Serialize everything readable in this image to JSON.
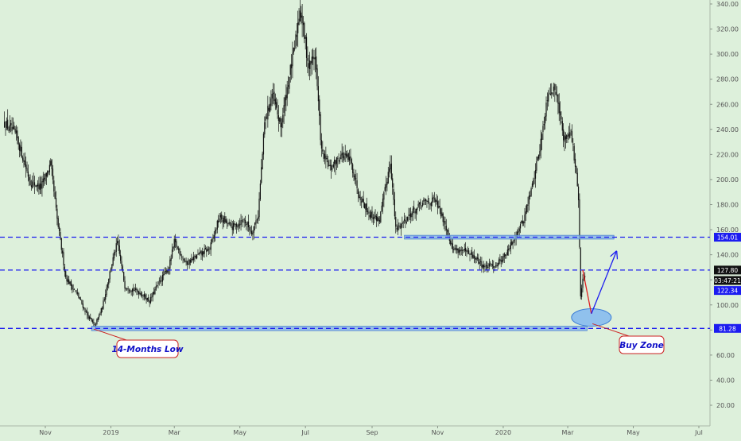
{
  "chart_data": {
    "type": "candlestick",
    "title": "",
    "xlabel": "",
    "ylabel": "",
    "ylim": [
      5,
      350
    ],
    "y_axis": {
      "position": "right",
      "ticks": [
        20,
        40,
        60,
        80,
        100,
        120,
        140,
        160,
        180,
        200,
        220,
        240,
        260,
        280,
        300,
        320,
        340
      ],
      "tick_labels": [
        "20.00",
        "40.00",
        "60.00",
        "80.00",
        "100.00",
        "120.00",
        "140.00",
        "160.00",
        "180.00",
        "200.00",
        "220.00",
        "240.00",
        "260.00",
        "280.00",
        "300.00",
        "320.00",
        "340.00"
      ]
    },
    "x_axis": {
      "ticks": [
        "2018-11-01",
        "2019-01-01",
        "2019-03-01",
        "2019-05-01",
        "2019-07-01",
        "2019-09-01",
        "2019-11-01",
        "2020-01-01",
        "2020-03-01",
        "2020-05-01",
        "2020-07-01"
      ],
      "tick_labels": [
        "Nov",
        "2019",
        "Mar",
        "May",
        "Jul",
        "Sep",
        "Nov",
        "2020",
        "Mar",
        "May",
        "Jul"
      ]
    },
    "grid": false,
    "price_path": [
      [
        "2018-09-24",
        245
      ],
      [
        "2018-10-05",
        235
      ],
      [
        "2018-10-18",
        198
      ],
      [
        "2018-10-28",
        194
      ],
      [
        "2018-11-06",
        212
      ],
      [
        "2018-11-12",
        168
      ],
      [
        "2018-11-20",
        122
      ],
      [
        "2018-12-01",
        108
      ],
      [
        "2018-12-10",
        92
      ],
      [
        "2018-12-17",
        83
      ],
      [
        "2018-12-24",
        98
      ],
      [
        "2019-01-01",
        130
      ],
      [
        "2019-01-07",
        150
      ],
      [
        "2019-01-14",
        115
      ],
      [
        "2019-01-28",
        110
      ],
      [
        "2019-02-06",
        103
      ],
      [
        "2019-02-14",
        117
      ],
      [
        "2019-02-24",
        130
      ],
      [
        "2019-03-01",
        150
      ],
      [
        "2019-03-12",
        133
      ],
      [
        "2019-03-24",
        140
      ],
      [
        "2019-04-03",
        145
      ],
      [
        "2019-04-12",
        170
      ],
      [
        "2019-04-24",
        162
      ],
      [
        "2019-05-05",
        168
      ],
      [
        "2019-05-12",
        158
      ],
      [
        "2019-05-18",
        172
      ],
      [
        "2019-05-24",
        245
      ],
      [
        "2019-05-31",
        268
      ],
      [
        "2019-06-08",
        242
      ],
      [
        "2019-06-15",
        278
      ],
      [
        "2019-06-21",
        305
      ],
      [
        "2019-06-26",
        338
      ],
      [
        "2019-07-04",
        290
      ],
      [
        "2019-07-10",
        300
      ],
      [
        "2019-07-16",
        222
      ],
      [
        "2019-07-24",
        208
      ],
      [
        "2019-08-03",
        220
      ],
      [
        "2019-08-12",
        215
      ],
      [
        "2019-08-20",
        188
      ],
      [
        "2019-08-30",
        172
      ],
      [
        "2019-09-08",
        168
      ],
      [
        "2019-09-18",
        215
      ],
      [
        "2019-09-23",
        160
      ],
      [
        "2019-10-06",
        172
      ],
      [
        "2019-10-20",
        182
      ],
      [
        "2019-10-30",
        183
      ],
      [
        "2019-11-08",
        165
      ],
      [
        "2019-11-15",
        145
      ],
      [
        "2019-11-25",
        143
      ],
      [
        "2019-12-05",
        138
      ],
      [
        "2019-12-15",
        130
      ],
      [
        "2019-12-25",
        132
      ],
      [
        "2020-01-05",
        142
      ],
      [
        "2020-01-12",
        155
      ],
      [
        "2020-01-20",
        168
      ],
      [
        "2020-01-28",
        195
      ],
      [
        "2020-02-05",
        230
      ],
      [
        "2020-02-12",
        272
      ],
      [
        "2020-02-20",
        270
      ],
      [
        "2020-02-26",
        232
      ],
      [
        "2020-03-04",
        240
      ],
      [
        "2020-03-09",
        202
      ],
      [
        "2020-03-11",
        185
      ],
      [
        "2020-03-12",
        145
      ],
      [
        "2020-03-13",
        106
      ],
      [
        "2020-03-15",
        120
      ],
      [
        "2020-03-17",
        122.34
      ]
    ],
    "horizontal_lines": [
      {
        "value": 154.01,
        "label": "154.01",
        "style": "dashed",
        "color": "#1c1cf0"
      },
      {
        "value": 127.8,
        "label": "127.80",
        "style": "dashed",
        "color": "#1c1cf0"
      },
      {
        "value": 81.28,
        "label": "81.28",
        "style": "dashed",
        "color": "#1c1cf0"
      }
    ],
    "price_markers": [
      {
        "label": "127.80",
        "value": 127.8,
        "background": "#111111"
      },
      {
        "label": "03:47:21",
        "value": 119.5,
        "background": "#111111"
      },
      {
        "label": "122.34",
        "value": 111.5,
        "background": "#1c1cf0"
      }
    ],
    "zones": [
      {
        "type": "rectangle",
        "from": "2019-10-01",
        "to": "2020-04-13",
        "y_low": 152.5,
        "y_high": 155.5,
        "color": "#7fb0ea"
      },
      {
        "type": "rectangle",
        "from": "2018-12-14",
        "to": "2020-03-19",
        "y_low": 79.5,
        "y_high": 83.0,
        "color": "#7fb0ea"
      },
      {
        "type": "ellipse",
        "center_date": "2020-03-23",
        "center_value": 90,
        "color": "#82b8f0"
      }
    ],
    "projection": {
      "points": [
        [
          "2020-03-15",
          127.8
        ],
        [
          "2020-03-23",
          93
        ],
        [
          "2020-04-15",
          142
        ]
      ],
      "down_color": "#e02020",
      "up_color": "#1c1cf0"
    },
    "annotations": [
      {
        "text": "14-Months Low",
        "date": "2018-12-16",
        "value": 80.8
      },
      {
        "text": "Buy Zone",
        "date": "2020-03-24",
        "value": 85
      }
    ],
    "colors": {
      "background": "#ddf0db",
      "candles": "#111111",
      "dashed_lines": "#1c1cf0",
      "zone_fill": "#7fb0ea",
      "annotation_text": "#1010c8",
      "annotation_border": "#cc2222",
      "axis_text": "#555555"
    }
  }
}
